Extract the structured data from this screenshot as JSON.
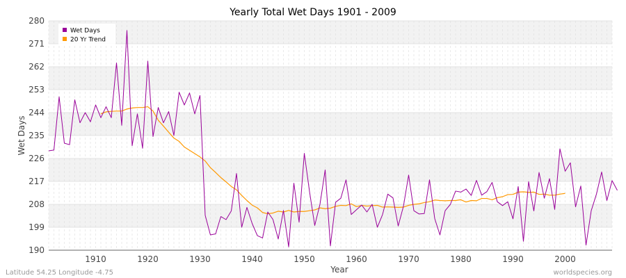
{
  "chart_data": {
    "type": "line",
    "title": "Yearly Total Wet Days 1901 - 2009",
    "xlabel": "Year",
    "ylabel": "Wet Days",
    "xlim": [
      1901,
      2009
    ],
    "ylim": [
      190,
      280
    ],
    "yticks": [
      190,
      199,
      208,
      217,
      226,
      235,
      244,
      253,
      262,
      271,
      280
    ],
    "xticks": [
      1910,
      1920,
      1930,
      1940,
      1950,
      1960,
      1970,
      1980,
      1990,
      2000
    ],
    "grid": true,
    "legend_position": "top-left",
    "series": [
      {
        "name": "Wet Days",
        "color": "#990099",
        "x_start": 1901,
        "values": [
          229,
          229.3,
          250.2,
          232,
          231.4,
          249,
          240,
          244,
          240.4,
          247,
          242,
          246.3,
          242,
          263.5,
          239,
          276.2,
          231,
          243.5,
          230,
          264.2,
          234.6,
          246,
          240,
          244.4,
          235,
          252,
          247,
          251.7,
          243.5,
          250.7,
          203.7,
          196,
          196.4,
          203.2,
          202,
          205.4,
          220.1,
          199,
          206.8,
          200.5,
          195.7,
          194.8,
          205,
          202,
          194.4,
          205.6,
          191.3,
          216.3,
          201,
          228,
          213,
          199.7,
          208,
          221.5,
          191.7,
          208.8,
          210.4,
          217.6,
          204,
          205.9,
          207.7,
          205,
          208,
          199,
          204,
          212,
          210.5,
          199.5,
          207.2,
          219.5,
          205.5,
          204.2,
          204.4,
          217.6,
          202.4,
          196,
          205.5,
          208,
          213.2,
          212.8,
          214,
          211.5,
          217.4,
          211.6,
          213,
          216.6,
          209,
          207.5,
          209,
          202.3,
          215,
          193.5,
          216.9,
          205.4,
          220.5,
          210.4,
          218.1,
          206,
          229.8,
          221,
          224.3,
          207,
          215.2,
          192,
          205.5,
          212,
          220.7,
          209.5,
          217.3,
          213.5
        ]
      },
      {
        "name": "20 Yr Trend",
        "color": "#ff9900",
        "x_start": 1911,
        "values": [
          243.5,
          244.3,
          244.5,
          244.6,
          244.6,
          245.4,
          245.8,
          246,
          246,
          246.3,
          244.6,
          241,
          238.7,
          236.3,
          234,
          232.7,
          230.5,
          229.2,
          227.9,
          226.6,
          225,
          222.4,
          220.5,
          218.5,
          216.8,
          215,
          213.7,
          211.5,
          209.5,
          207.7,
          206.6,
          204.8,
          204.3,
          204.6,
          205.3,
          205,
          205.6,
          205,
          205.2,
          205.2,
          205.5,
          205.8,
          206.6,
          206.3,
          206.5,
          207.2,
          207.6,
          207.5,
          208.2,
          207.1,
          207.6,
          207.3,
          207.5,
          207.6,
          206.9,
          207,
          206.9,
          206.8,
          206.9,
          207.6,
          208,
          208.2,
          208.7,
          209,
          209.7,
          209.5,
          209.4,
          209.5,
          209.5,
          209.8,
          208.9,
          209.5,
          209.4,
          210.3,
          210.3,
          209.8,
          210.6,
          211,
          211.8,
          211.9,
          212.8,
          212.9,
          212.7,
          212.8,
          211.9,
          212,
          211.6,
          211.6,
          212,
          212.3
        ]
      }
    ]
  },
  "footer": {
    "left": "Latitude 54.25 Longitude -4.75",
    "right": "worldspecies.org"
  },
  "colors": {
    "band": "#f2f2f2",
    "grid": "#dcdcdc",
    "axis": "#666666"
  }
}
